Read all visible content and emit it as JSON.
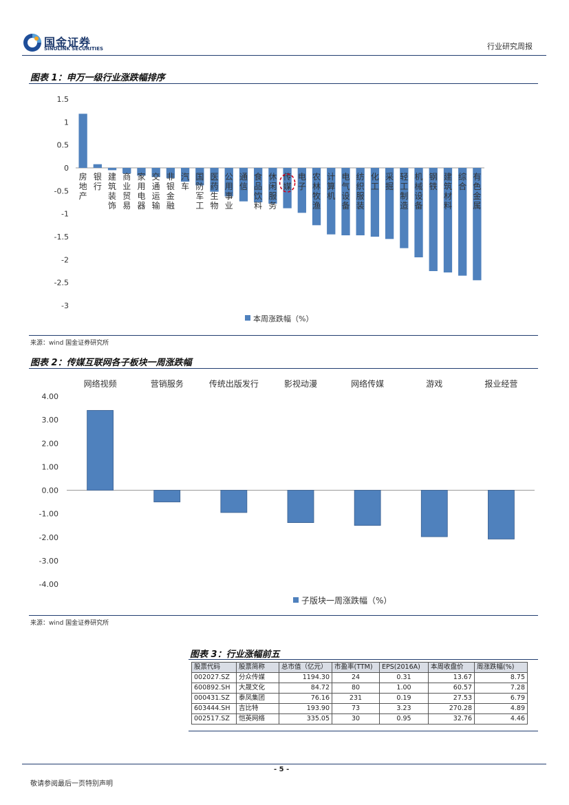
{
  "header": {
    "logo_cn": "国金证券",
    "logo_en": "SINOLINK SECURITIES",
    "report_type": "行业研究周报"
  },
  "figure1": {
    "title": "图表 1：申万一级行业涨跌幅排序",
    "source": "来源：wind 国金证券研究所"
  },
  "figure2": {
    "title": "图表 2：传媒互联网各子板块一周涨跌幅",
    "source": "来源：wind 国金证券研究所"
  },
  "table3": {
    "title": "图表 3：行业涨幅前五",
    "headers": [
      "股票代码",
      "股票简称",
      "总市值（亿元）",
      "市盈率(TTM)",
      "EPS(2016A)",
      "本周收盘价",
      "周涨跌幅(%)"
    ],
    "rows": [
      [
        "002027.SZ",
        "分众传媒",
        "1194.30",
        "24",
        "0.31",
        "13.67",
        "8.75"
      ],
      [
        "600892.SH",
        "大晟文化",
        "84.72",
        "80",
        "1.00",
        "60.57",
        "7.28"
      ],
      [
        "000431.SZ",
        "泰凤集团",
        "76.16",
        "231",
        "0.19",
        "27.53",
        "6.79"
      ],
      [
        "603444.SH",
        "吉比特",
        "193.90",
        "73",
        "3.23",
        "270.28",
        "4.89"
      ],
      [
        "002517.SZ",
        "恺英网络",
        "335.05",
        "30",
        "0.95",
        "32.76",
        "4.46"
      ]
    ]
  },
  "footer": {
    "page_number": "- 5 -",
    "disclaimer": "敬请参阅最后一页特别声明"
  },
  "chart_data": [
    {
      "type": "bar",
      "title": "申万一级行业涨跌幅排序",
      "legend": "本周涨跌幅（%）",
      "legend_position": "bottom",
      "ylim": [
        -3,
        1.5
      ],
      "yticks": [
        "1.5",
        "1",
        "0.5",
        "0",
        "-0.5",
        "-1",
        "-1.5",
        "-2",
        "-2.5",
        "-3"
      ],
      "yticks_values": [
        1.5,
        1,
        0.5,
        0,
        -0.5,
        -1,
        -1.5,
        -2,
        -2.5,
        -3
      ],
      "categories": [
        "房地产",
        "银行",
        "建筑装饰",
        "商业贸易",
        "家用电器",
        "交通运输",
        "非银金融",
        "汽车",
        "国防军工",
        "医药生物",
        "公用事业",
        "通信",
        "食品饮料",
        "休闲服务",
        "传媒",
        "电子",
        "农林牧渔",
        "计算机",
        "电气设备",
        "纺织服装",
        "化工",
        "采掘",
        "轻工制造",
        "机械设备",
        "钢铁",
        "建筑材料",
        "综合",
        "有色金属"
      ],
      "values": [
        1.18,
        0.08,
        -0.05,
        -0.12,
        -0.17,
        -0.2,
        -0.22,
        -0.3,
        -0.38,
        -0.52,
        -0.62,
        -0.73,
        -0.75,
        -0.78,
        -0.88,
        -0.98,
        -1.25,
        -1.45,
        -1.47,
        -1.47,
        -1.5,
        -1.55,
        -1.75,
        -1.95,
        -2.25,
        -2.28,
        -2.35,
        -2.45
      ],
      "highlight": "传媒",
      "color": "#4f81bd"
    },
    {
      "type": "bar",
      "title": "传媒互联网各子板块一周涨跌幅",
      "legend": "子版块一周涨跌幅（%）",
      "legend_position": "bottom",
      "ylim": [
        -4,
        4
      ],
      "yticks": [
        "4.00",
        "3.00",
        "2.00",
        "1.00",
        "0.00",
        "-1.00",
        "-2.00",
        "-3.00",
        "-4.00"
      ],
      "yticks_values": [
        4,
        3,
        2,
        1,
        0,
        -1,
        -2,
        -3,
        -4
      ],
      "categories": [
        "网络视频",
        "营销服务",
        "传统出版发行",
        "影视动漫",
        "网络传媒",
        "游戏",
        "报业经营"
      ],
      "values": [
        3.4,
        -0.5,
        -0.95,
        -1.38,
        -1.5,
        -1.98,
        -2.08
      ],
      "color": "#4f81bd"
    }
  ]
}
